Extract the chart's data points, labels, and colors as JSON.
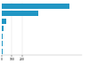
{
  "values": [
    672.5,
    360.0,
    47.5,
    22.0,
    10.0,
    6.1,
    5.4
  ],
  "bar_color": "#2196c4",
  "background_color": "#ffffff",
  "xlim": [
    0,
    800
  ],
  "bar_height": 0.72,
  "figsize": [
    1.0,
    0.71
  ],
  "dpi": 100,
  "grid_color": "#dddddd",
  "xticks": [
    0,
    100,
    200
  ]
}
